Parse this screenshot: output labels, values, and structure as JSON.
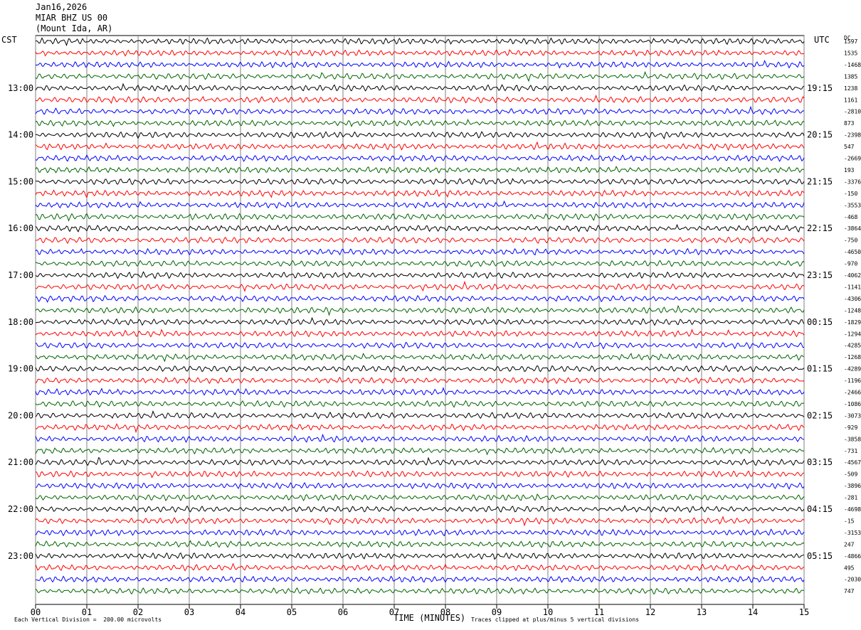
{
  "header": {
    "date": "Jan16,2026",
    "station": "MIAR BHZ US 00",
    "location": "(Mount Ida, AR)"
  },
  "left_timezone": "CST",
  "right_timezone": "UTC",
  "right_column_label": "DC",
  "footer": {
    "scale_note": "Each Vertical Division =  200.00 microvolts",
    "xlabel": "TIME (MINUTES)",
    "clip_note": "Traces clipped at plus/minus 5 vertical divisions"
  },
  "colors": {
    "trace_cycle": [
      "#000000",
      "#ff0000",
      "#0000ff",
      "#006400"
    ],
    "grid": "#808080"
  },
  "chart_data": {
    "type": "line",
    "title": "",
    "xlabel": "TIME (MINUTES)",
    "ylabel": "",
    "xlim": [
      0,
      15
    ],
    "x_ticks": [
      "00",
      "01",
      "02",
      "03",
      "04",
      "05",
      "06",
      "07",
      "08",
      "09",
      "10",
      "11",
      "12",
      "13",
      "14",
      "15"
    ],
    "left_hour_labels": [
      "13:00",
      "14:00",
      "15:00",
      "16:00",
      "17:00",
      "18:00",
      "19:00",
      "20:00",
      "21:00",
      "22:00",
      "23:00"
    ],
    "right_hour_labels": [
      "19:15",
      "20:15",
      "21:15",
      "22:15",
      "23:15",
      "00:15",
      "01:15",
      "02:15",
      "03:15",
      "04:15",
      "05:15"
    ],
    "trace_count": 48,
    "dc_offsets": [
      "1597",
      "1535",
      "-1468",
      "1385",
      "1238",
      "1161",
      "-2810",
      "873",
      "-2398",
      "547",
      "-2669",
      "193",
      "-3376",
      "-150",
      "-3553",
      "-468",
      "-3864",
      "-750",
      "-4650",
      "-970",
      "-4062",
      "-1141",
      "-4306",
      "-1248",
      "-1829",
      "-1294",
      "-4285",
      "-1268",
      "-4289",
      "-1196",
      "-2466",
      "-1086",
      "-3073",
      "-929",
      "-3858",
      "-731",
      "-4567",
      "-509",
      "-3896",
      "-281",
      "-4698",
      "-15",
      "-3153",
      "247",
      "-4866",
      "495",
      "-2030",
      "747"
    ]
  }
}
